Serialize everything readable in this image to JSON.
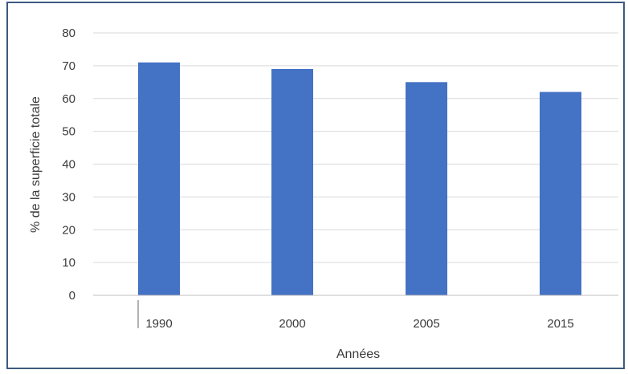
{
  "chart_data": {
    "type": "bar",
    "categories": [
      "1990",
      "2000",
      "2005",
      "2015"
    ],
    "values": [
      71,
      69,
      65,
      62
    ],
    "title": "",
    "xlabel": "Années",
    "ylabel": "% de la superficie totale",
    "ylim": [
      0,
      80
    ],
    "yticks": [
      0,
      10,
      20,
      30,
      40,
      50,
      60,
      70,
      80
    ],
    "grid": true,
    "legend": "none",
    "colors": {
      "bar": "#4472c4",
      "grid": "#d9d9d9",
      "axis": "#bfbfbf",
      "frame": "#3d5a80",
      "text": "#3a3a3a"
    }
  }
}
